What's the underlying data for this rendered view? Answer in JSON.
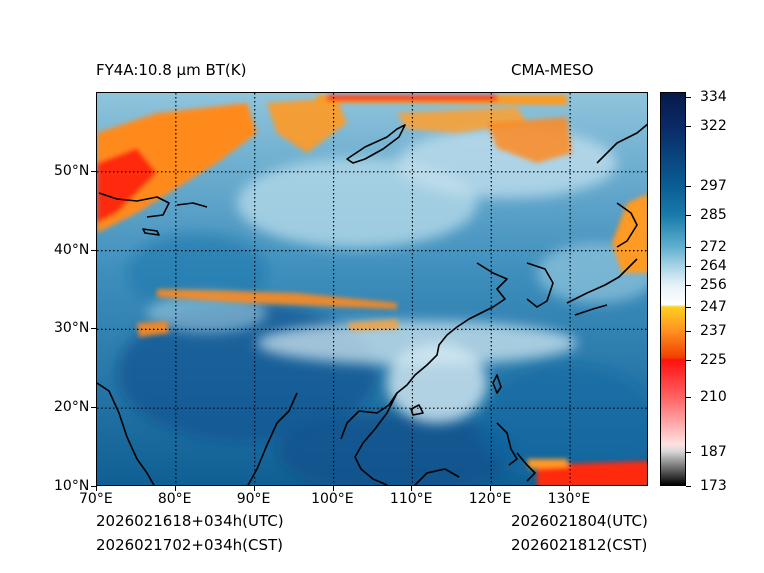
{
  "title_left": "FY4A:10.8 µm BT(K)",
  "title_right": "CMA-MESO",
  "footer": {
    "init_utc": "2026021618+034h(UTC)",
    "init_cst": "2026021702+034h(CST)",
    "valid_utc": "2026021804(UTC)",
    "valid_cst": "2026021812(CST)"
  },
  "axes": {
    "lon_labels": [
      "70°E",
      "80°E",
      "90°E",
      "100°E",
      "110°E",
      "120°E",
      "130°E"
    ],
    "lat_labels": [
      "50°N",
      "40°N",
      "30°N",
      "20°N",
      "10°N"
    ],
    "lon_values": [
      70,
      80,
      90,
      100,
      110,
      120,
      130
    ],
    "lat_values": [
      50,
      40,
      30,
      20,
      10
    ],
    "lon_range": [
      70,
      140
    ],
    "lat_range": [
      10,
      60
    ]
  },
  "colorbar": {
    "unit": "K",
    "range": [
      173,
      336
    ],
    "tick_labels": [
      "334",
      "322",
      "297",
      "285",
      "272",
      "264",
      "256",
      "247",
      "237",
      "225",
      "210",
      "187",
      "173"
    ],
    "tick_values": [
      334,
      322,
      297,
      285,
      272,
      264,
      256,
      247,
      237,
      225,
      210,
      187,
      173
    ],
    "stops": [
      {
        "v": 173,
        "c": "#000000"
      },
      {
        "v": 187,
        "c": "#d8d8d8"
      },
      {
        "v": 190,
        "c": "#ffe0e0"
      },
      {
        "v": 210,
        "c": "#ff6060"
      },
      {
        "v": 225,
        "c": "#ff1010"
      },
      {
        "v": 226,
        "c": "#f04000"
      },
      {
        "v": 237,
        "c": "#ff9020"
      },
      {
        "v": 247,
        "c": "#ffd020"
      },
      {
        "v": 248,
        "c": "#ffffff"
      },
      {
        "v": 256,
        "c": "#e6f2f8"
      },
      {
        "v": 264,
        "c": "#a8d4e6"
      },
      {
        "v": 272,
        "c": "#5fb0cf"
      },
      {
        "v": 285,
        "c": "#1a7bab"
      },
      {
        "v": 297,
        "c": "#0a5e94"
      },
      {
        "v": 322,
        "c": "#0a2a66"
      },
      {
        "v": 336,
        "c": "#061a4a"
      }
    ]
  },
  "colors": {
    "ocean": "#0f6a9e",
    "cold_cloud": "#ff8a1c",
    "very_cold_cloud": "#ff2a10",
    "mid_cloud": "#a9d4e6",
    "land_warm": "#1465a0",
    "coast": "#000000"
  }
}
